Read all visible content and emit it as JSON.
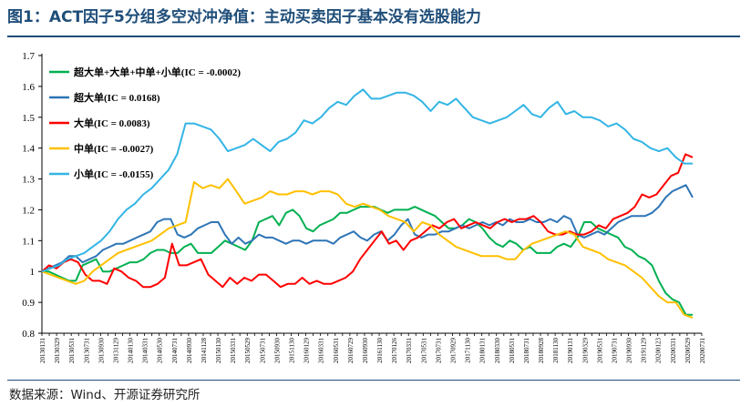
{
  "header": {
    "title": "图1：ACT因子5分组多空对冲净值：主动买卖因子基本没有选股能力"
  },
  "footer": {
    "source": "数据来源：Wind、开源证券研究所"
  },
  "colors": {
    "title": "#1f4e79",
    "series": [
      "#00b050",
      "#2e75b6",
      "#ff0000",
      "#ffc000",
      "#33b5e5"
    ]
  },
  "chart_data": {
    "type": "line",
    "title": "",
    "xlabel": "",
    "ylabel": "",
    "ylim": [
      0.8,
      1.7
    ],
    "yticks": [
      "0.8",
      "0.9",
      "1",
      "1.1",
      "1.2",
      "1.3",
      "1.4",
      "1.5",
      "1.6",
      "1.7"
    ],
    "grid": false,
    "legend_position": "top-left",
    "x_labels": [
      "20130131",
      "20130329",
      "20130531",
      "20130731",
      "20130930",
      "20131129",
      "20140130",
      "20140331",
      "20140530",
      "20140731",
      "20140930",
      "20141128",
      "20150130",
      "20150331",
      "20150529",
      "20150731",
      "20150930",
      "20151130",
      "20160129",
      "20160331",
      "20160531",
      "20160729",
      "20160930",
      "20161130",
      "20170126",
      "20170331",
      "20170531",
      "20170731",
      "20170929",
      "20171130",
      "20180131",
      "20180330",
      "20180531",
      "20180731",
      "20180928",
      "20181130",
      "20190131",
      "20190329",
      "20190531",
      "20190731",
      "20190930",
      "20191129",
      "20200123",
      "20200331",
      "20200529",
      "20200731"
    ],
    "label_step": 2,
    "series": [
      {
        "name": "超大单+大单+中单+小单(IC = -0.0002)",
        "values": [
          1.0,
          1.0,
          0.99,
          0.98,
          0.97,
          0.97,
          1.02,
          1.03,
          1.04,
          1.0,
          1.0,
          1.01,
          1.02,
          1.03,
          1.03,
          1.04,
          1.06,
          1.07,
          1.07,
          1.06,
          1.06,
          1.08,
          1.09,
          1.06,
          1.06,
          1.06,
          1.08,
          1.1,
          1.09,
          1.08,
          1.07,
          1.1,
          1.16,
          1.17,
          1.18,
          1.15,
          1.19,
          1.2,
          1.18,
          1.14,
          1.13,
          1.15,
          1.16,
          1.17,
          1.19,
          1.19,
          1.2,
          1.21,
          1.21,
          1.21,
          1.2,
          1.19,
          1.2,
          1.2,
          1.2,
          1.21,
          1.2,
          1.19,
          1.18,
          1.16,
          1.14,
          1.14,
          1.15,
          1.17,
          1.16,
          1.14,
          1.11,
          1.09,
          1.08,
          1.1,
          1.09,
          1.07,
          1.08,
          1.06,
          1.06,
          1.06,
          1.08,
          1.09,
          1.08,
          1.11,
          1.16,
          1.16,
          1.14,
          1.13,
          1.12,
          1.11,
          1.08,
          1.07,
          1.05,
          1.04,
          1.02,
          0.97,
          0.93,
          0.91,
          0.9,
          0.86,
          0.86
        ]
      },
      {
        "name": "超大单(IC = 0.0168)",
        "values": [
          1.0,
          1.01,
          1.02,
          1.03,
          1.05,
          1.05,
          1.03,
          1.04,
          1.05,
          1.07,
          1.08,
          1.09,
          1.09,
          1.1,
          1.11,
          1.12,
          1.13,
          1.16,
          1.17,
          1.17,
          1.12,
          1.11,
          1.12,
          1.14,
          1.15,
          1.16,
          1.16,
          1.12,
          1.09,
          1.11,
          1.09,
          1.1,
          1.12,
          1.11,
          1.11,
          1.1,
          1.09,
          1.1,
          1.1,
          1.09,
          1.1,
          1.1,
          1.1,
          1.09,
          1.11,
          1.12,
          1.13,
          1.11,
          1.1,
          1.12,
          1.13,
          1.1,
          1.12,
          1.15,
          1.17,
          1.12,
          1.11,
          1.12,
          1.12,
          1.13,
          1.13,
          1.14,
          1.15,
          1.14,
          1.15,
          1.16,
          1.15,
          1.16,
          1.15,
          1.17,
          1.16,
          1.16,
          1.17,
          1.16,
          1.16,
          1.17,
          1.16,
          1.18,
          1.17,
          1.12,
          1.11,
          1.12,
          1.13,
          1.12,
          1.14,
          1.16,
          1.17,
          1.18,
          1.18,
          1.18,
          1.19,
          1.21,
          1.24,
          1.26,
          1.27,
          1.28,
          1.24
        ]
      },
      {
        "name": "大单(IC = 0.0083)",
        "values": [
          1.0,
          1.02,
          1.01,
          1.03,
          1.04,
          1.03,
          0.99,
          0.97,
          0.97,
          0.96,
          1.01,
          1.0,
          0.98,
          0.97,
          0.95,
          0.95,
          0.96,
          0.98,
          1.09,
          1.02,
          1.02,
          1.03,
          1.04,
          0.99,
          0.97,
          0.95,
          0.98,
          0.96,
          0.98,
          0.97,
          0.99,
          0.99,
          0.97,
          0.95,
          0.96,
          0.96,
          0.98,
          0.96,
          0.97,
          0.96,
          0.96,
          0.97,
          0.98,
          1.0,
          1.04,
          1.07,
          1.1,
          1.13,
          1.09,
          1.1,
          1.07,
          1.1,
          1.11,
          1.13,
          1.15,
          1.14,
          1.16,
          1.17,
          1.14,
          1.15,
          1.16,
          1.15,
          1.14,
          1.16,
          1.17,
          1.16,
          1.17,
          1.17,
          1.18,
          1.16,
          1.13,
          1.12,
          1.12,
          1.13,
          1.12,
          1.12,
          1.13,
          1.15,
          1.14,
          1.17,
          1.18,
          1.19,
          1.21,
          1.25,
          1.24,
          1.25,
          1.28,
          1.31,
          1.32,
          1.38,
          1.37
        ]
      },
      {
        "name": "中单(IC = -0.0027)",
        "values": [
          1.0,
          0.99,
          0.98,
          0.97,
          0.96,
          0.97,
          1.0,
          1.02,
          1.04,
          1.06,
          1.07,
          1.08,
          1.09,
          1.1,
          1.12,
          1.14,
          1.15,
          1.16,
          1.29,
          1.27,
          1.28,
          1.27,
          1.3,
          1.26,
          1.22,
          1.23,
          1.24,
          1.26,
          1.25,
          1.25,
          1.26,
          1.26,
          1.25,
          1.26,
          1.26,
          1.25,
          1.22,
          1.21,
          1.22,
          1.21,
          1.2,
          1.18,
          1.17,
          1.16,
          1.13,
          1.16,
          1.15,
          1.12,
          1.1,
          1.08,
          1.07,
          1.06,
          1.05,
          1.05,
          1.05,
          1.04,
          1.04,
          1.07,
          1.09,
          1.1,
          1.11,
          1.12,
          1.13,
          1.12,
          1.08,
          1.07,
          1.06,
          1.04,
          1.03,
          1.02,
          1.0,
          0.98,
          0.95,
          0.92,
          0.9,
          0.9,
          0.86,
          0.85
        ]
      },
      {
        "name": "小单(IC = -0.0155)",
        "values": [
          1.0,
          1.01,
          1.02,
          1.04,
          1.05,
          1.06,
          1.08,
          1.1,
          1.13,
          1.17,
          1.2,
          1.22,
          1.25,
          1.27,
          1.3,
          1.33,
          1.38,
          1.48,
          1.48,
          1.47,
          1.46,
          1.43,
          1.39,
          1.4,
          1.41,
          1.43,
          1.41,
          1.39,
          1.42,
          1.43,
          1.45,
          1.49,
          1.48,
          1.5,
          1.53,
          1.55,
          1.54,
          1.57,
          1.59,
          1.56,
          1.56,
          1.57,
          1.58,
          1.58,
          1.57,
          1.55,
          1.52,
          1.55,
          1.54,
          1.56,
          1.53,
          1.5,
          1.49,
          1.48,
          1.49,
          1.5,
          1.52,
          1.54,
          1.51,
          1.5,
          1.53,
          1.55,
          1.51,
          1.52,
          1.5,
          1.5,
          1.49,
          1.47,
          1.48,
          1.46,
          1.43,
          1.42,
          1.4,
          1.39,
          1.4,
          1.37,
          1.35,
          1.35
        ]
      }
    ]
  }
}
